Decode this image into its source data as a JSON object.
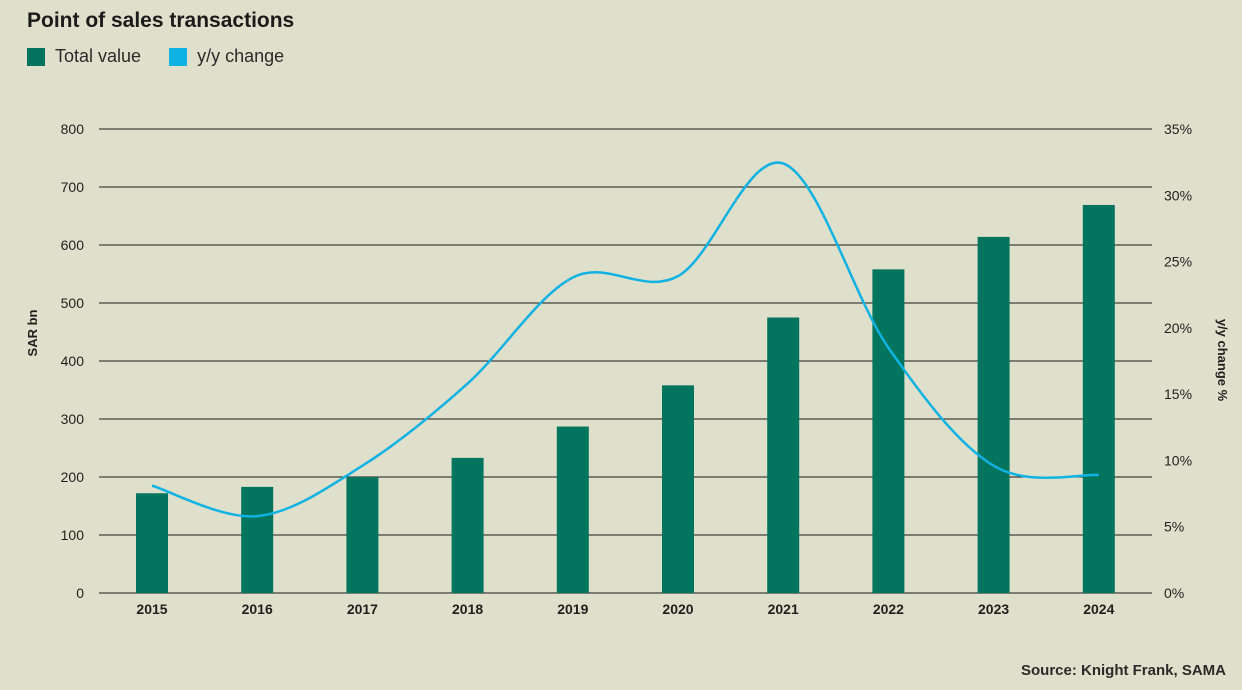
{
  "colors": {
    "background": "#dfe0cb",
    "bar": "#03755f",
    "line": "#10b2e3",
    "grid": "#1a1a1a"
  },
  "chart_data": {
    "type": "bar",
    "title": "Point of sales transactions",
    "categories": [
      "2015",
      "2016",
      "2017",
      "2018",
      "2019",
      "2020",
      "2021",
      "2022",
      "2023",
      "2024"
    ],
    "series": [
      {
        "name": "Total value",
        "type": "bar",
        "axis": "left",
        "values": [
          172,
          183,
          200,
          233,
          287,
          358,
          475,
          558,
          614,
          669
        ]
      },
      {
        "name": "y/y change",
        "type": "line",
        "axis": "right",
        "values": [
          8.1,
          5.8,
          9.6,
          15.8,
          23.8,
          23.9,
          32.4,
          18.5,
          9.6,
          8.9
        ]
      }
    ],
    "ylabel": "SAR bn",
    "y2label": "y/y change %",
    "ylim": [
      0,
      800
    ],
    "y2lim": [
      0,
      35
    ],
    "yticks": [
      "0",
      "100",
      "200",
      "300",
      "400",
      "500",
      "600",
      "700",
      "800"
    ],
    "y2ticks": [
      "0%",
      "5%",
      "10%",
      "15%",
      "20%",
      "25%",
      "30%",
      "35%"
    ],
    "legend_position": "top-left",
    "grid": true,
    "source": "Source: Knight Frank, SAMA"
  }
}
